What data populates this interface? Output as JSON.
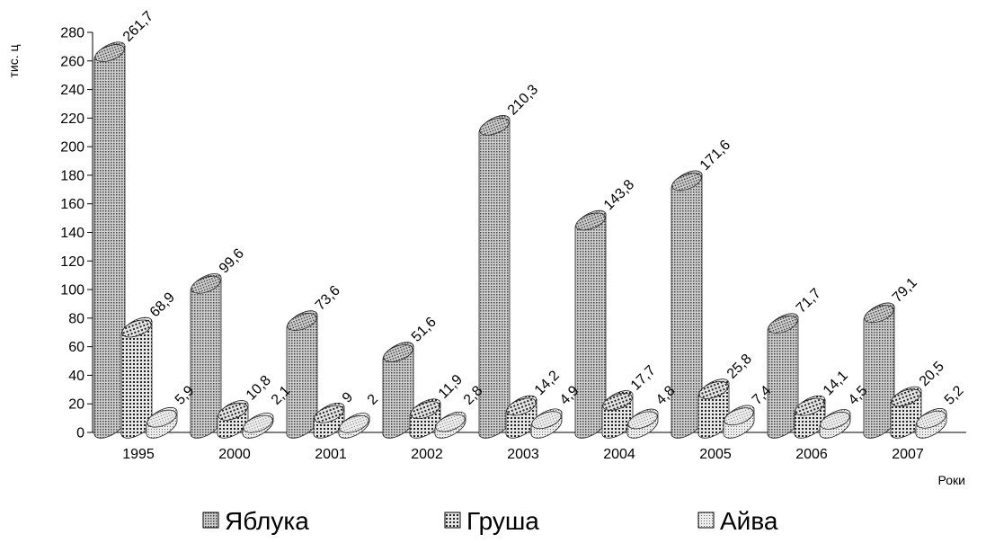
{
  "chart_data": {
    "type": "bar",
    "ylabel": "тис. ц",
    "xlabel": "Роки",
    "ylim": [
      0,
      280
    ],
    "yticks": [
      0,
      20,
      40,
      60,
      80,
      100,
      120,
      140,
      160,
      180,
      200,
      220,
      240,
      260,
      280
    ],
    "categories": [
      "1995",
      "2000",
      "2001",
      "2002",
      "2003",
      "2004",
      "2005",
      "2006",
      "2007"
    ],
    "series": [
      {
        "name": "Яблука",
        "values": [
          261.7,
          99.6,
          73.6,
          51.6,
          210.3,
          143.8,
          171.6,
          71.7,
          79.1
        ],
        "labels": [
          "261,7",
          "99,6",
          "73,6",
          "51,6",
          "210,3",
          "143,8",
          "171,6",
          "71,7",
          "79,1"
        ]
      },
      {
        "name": "Груша",
        "values": [
          68.9,
          10.8,
          9,
          11.9,
          14.2,
          17.7,
          25.8,
          14.1,
          20.5
        ],
        "labels": [
          "68,9",
          "10,8",
          "9",
          "11,9",
          "14,2",
          "17,7",
          "25,8",
          "14,1",
          "20,5"
        ]
      },
      {
        "name": "Айва",
        "values": [
          5.9,
          2.1,
          2,
          2.8,
          4.9,
          4.8,
          7.4,
          4.5,
          5.2
        ],
        "labels": [
          "5,9",
          "2,1",
          "2",
          "2,8",
          "4,9",
          "4,8",
          "7,4",
          "4,5",
          "5,2"
        ]
      }
    ],
    "legend_position": "bottom",
    "grid": false,
    "colors": [
      "#8a8a8a",
      "#7a7a7a",
      "#b8b8b8"
    ]
  }
}
